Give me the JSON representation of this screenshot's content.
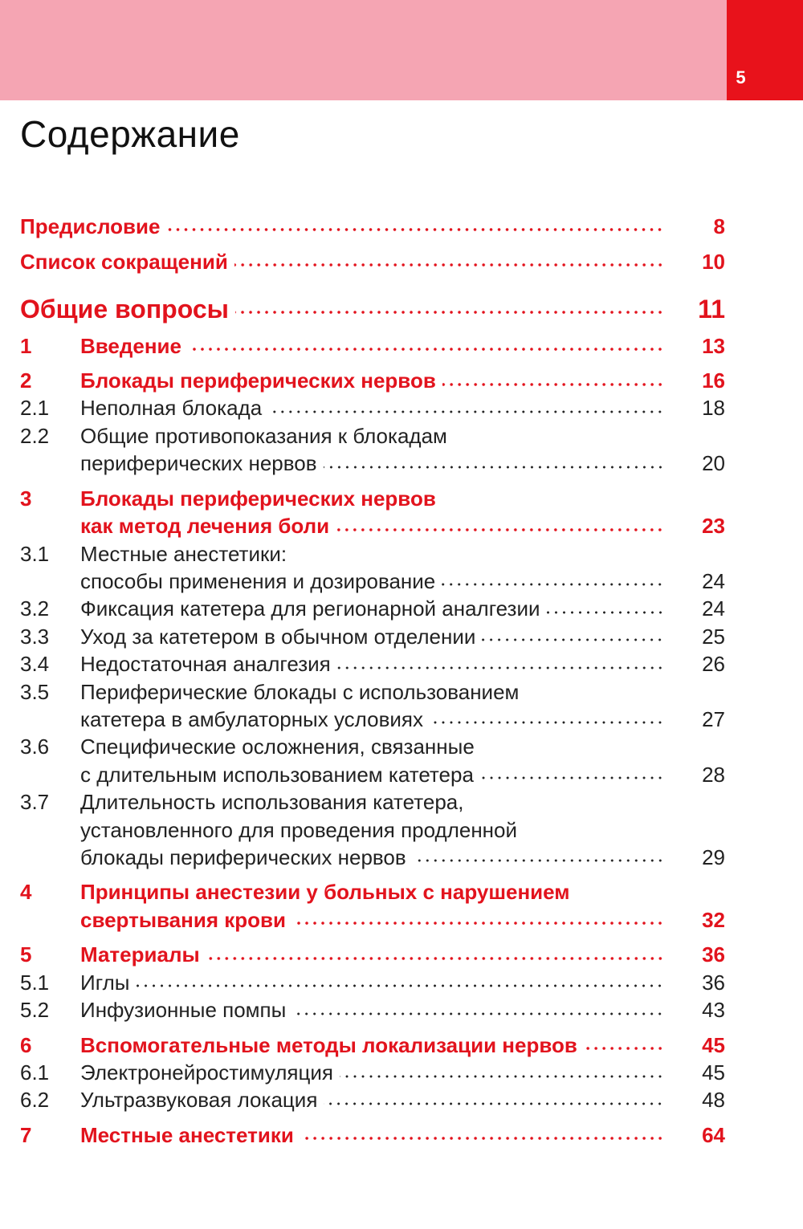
{
  "header": {
    "page_number": "5"
  },
  "title": "Содержание",
  "front": [
    {
      "lines": [
        "Предисловие"
      ],
      "page": "8"
    },
    {
      "lines": [
        "Список сокращений"
      ],
      "page": "10"
    }
  ],
  "part": {
    "lines": [
      "Общие вопросы"
    ],
    "page": "11"
  },
  "chapters": [
    {
      "num": "1",
      "lines": [
        "Введение"
      ],
      "page": "13",
      "sections": []
    },
    {
      "num": "2",
      "lines": [
        "Блокады периферических нервов"
      ],
      "page": "16",
      "sections": [
        {
          "num": "2.1",
          "lines": [
            "Неполная блокада"
          ],
          "page": "18"
        },
        {
          "num": "2.2",
          "lines": [
            "Общие противопоказания к блокадам",
            "периферических нервов"
          ],
          "page": "20"
        }
      ]
    },
    {
      "num": "3",
      "lines": [
        "Блокады периферических нервов",
        "как метод лечения боли"
      ],
      "page": "23",
      "sections": [
        {
          "num": "3.1",
          "lines": [
            "Местные анестетики:",
            "способы применения и дозирование"
          ],
          "page": "24"
        },
        {
          "num": "3.2",
          "lines": [
            "Фиксация катетера для регионарной аналгезии"
          ],
          "page": "24"
        },
        {
          "num": "3.3",
          "lines": [
            "Уход за катетером в обычном отделении"
          ],
          "page": "25"
        },
        {
          "num": "3.4",
          "lines": [
            "Недостаточная аналгезия"
          ],
          "page": "26"
        },
        {
          "num": "3.5",
          "lines": [
            "Периферические блокады с использованием",
            "катетера в амбулаторных условиях"
          ],
          "page": "27"
        },
        {
          "num": "3.6",
          "lines": [
            "Специфические осложнения, связанные",
            "с длительным использованием катетера"
          ],
          "page": "28"
        },
        {
          "num": "3.7",
          "lines": [
            "Длительность использования катетера,",
            "установленного для проведения продленной",
            "блокады периферических нервов"
          ],
          "page": "29"
        }
      ]
    },
    {
      "num": "4",
      "lines": [
        "Принципы анестезии у больных с нарушением",
        "свертывания крови"
      ],
      "page": "32",
      "sections": []
    },
    {
      "num": "5",
      "lines": [
        "Материалы"
      ],
      "page": "36",
      "sections": [
        {
          "num": "5.1",
          "lines": [
            "Иглы"
          ],
          "page": "36"
        },
        {
          "num": "5.2",
          "lines": [
            "Инфузионные помпы"
          ],
          "page": "43"
        }
      ]
    },
    {
      "num": "6",
      "lines": [
        "Вспомогательные методы локализации нервов"
      ],
      "page": "45",
      "sections": [
        {
          "num": "6.1",
          "lines": [
            "Электронейростимуляция"
          ],
          "page": "45"
        },
        {
          "num": "6.2",
          "lines": [
            "Ультразвуковая локация"
          ],
          "page": "48"
        }
      ]
    },
    {
      "num": "7",
      "lines": [
        "Местные анестетики"
      ],
      "page": "64",
      "sections": []
    }
  ]
}
